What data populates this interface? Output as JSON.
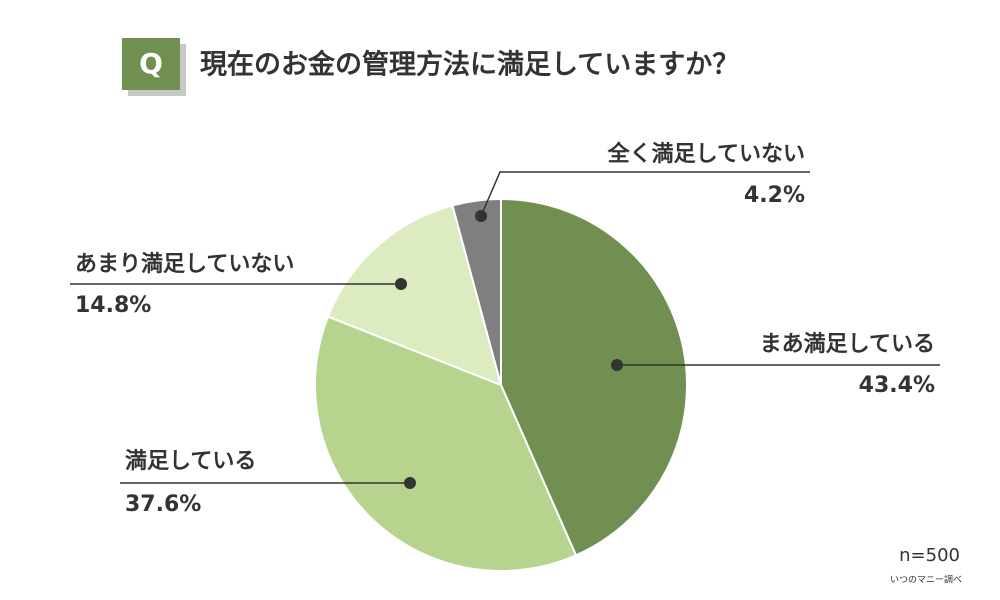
{
  "chart_data": {
    "type": "pie",
    "badge": "Q",
    "title": "現在のお金の管理方法に満足していますか？",
    "categories": [
      "まあ満足している",
      "満足している",
      "あまり満足していない",
      "全く満足していない"
    ],
    "values": [
      43.4,
      37.6,
      14.8,
      4.2
    ],
    "value_labels": [
      "43.4%",
      "37.6%",
      "14.8%",
      "4.2%"
    ],
    "colors": [
      "#728f52",
      "#b7d48e",
      "#dcebc0",
      "#7f7f7f"
    ],
    "note": "n=500",
    "source": "いつのマニー調べ"
  }
}
